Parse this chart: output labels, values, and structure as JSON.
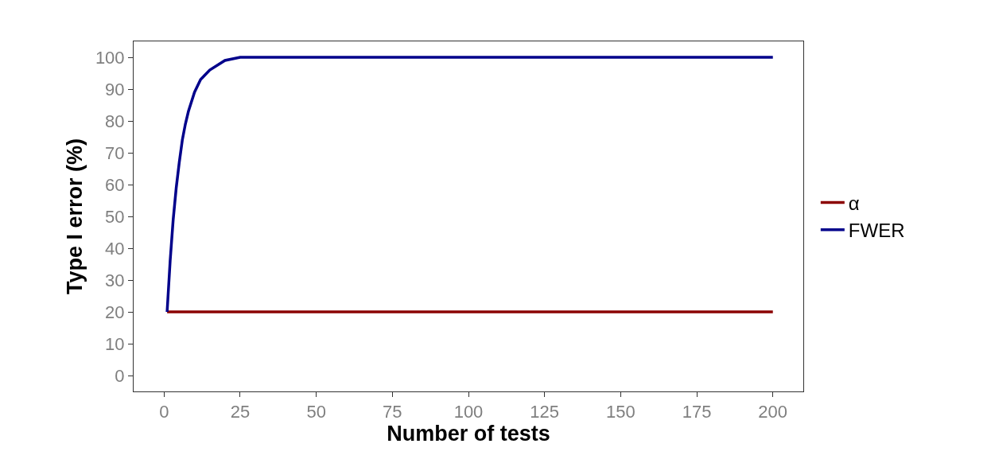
{
  "chart_data": {
    "type": "line",
    "xlabel": "Number of tests",
    "ylabel": "Type I error (%)",
    "xlim": [
      -10,
      210
    ],
    "xticks": [
      0,
      25,
      50,
      75,
      100,
      125,
      150,
      175,
      200
    ],
    "ylim": [
      -5,
      105
    ],
    "yticks": [
      0,
      10,
      20,
      30,
      40,
      50,
      60,
      70,
      80,
      90,
      100
    ],
    "grid": false,
    "legend": "right",
    "marker": "none",
    "line_style": "solid",
    "series": [
      {
        "name": "α",
        "color": "#8b0000",
        "x": [
          1,
          200
        ],
        "values": [
          20,
          20
        ]
      },
      {
        "name": "FWER",
        "color": "#00008b",
        "x": [
          1,
          2,
          3,
          4,
          5,
          6,
          7,
          8,
          10,
          12,
          15,
          20,
          25,
          30,
          35,
          200
        ],
        "values": [
          20,
          36,
          49,
          59,
          67,
          74,
          79,
          83,
          89,
          93,
          96,
          99,
          100,
          100,
          100,
          100
        ]
      }
    ]
  }
}
